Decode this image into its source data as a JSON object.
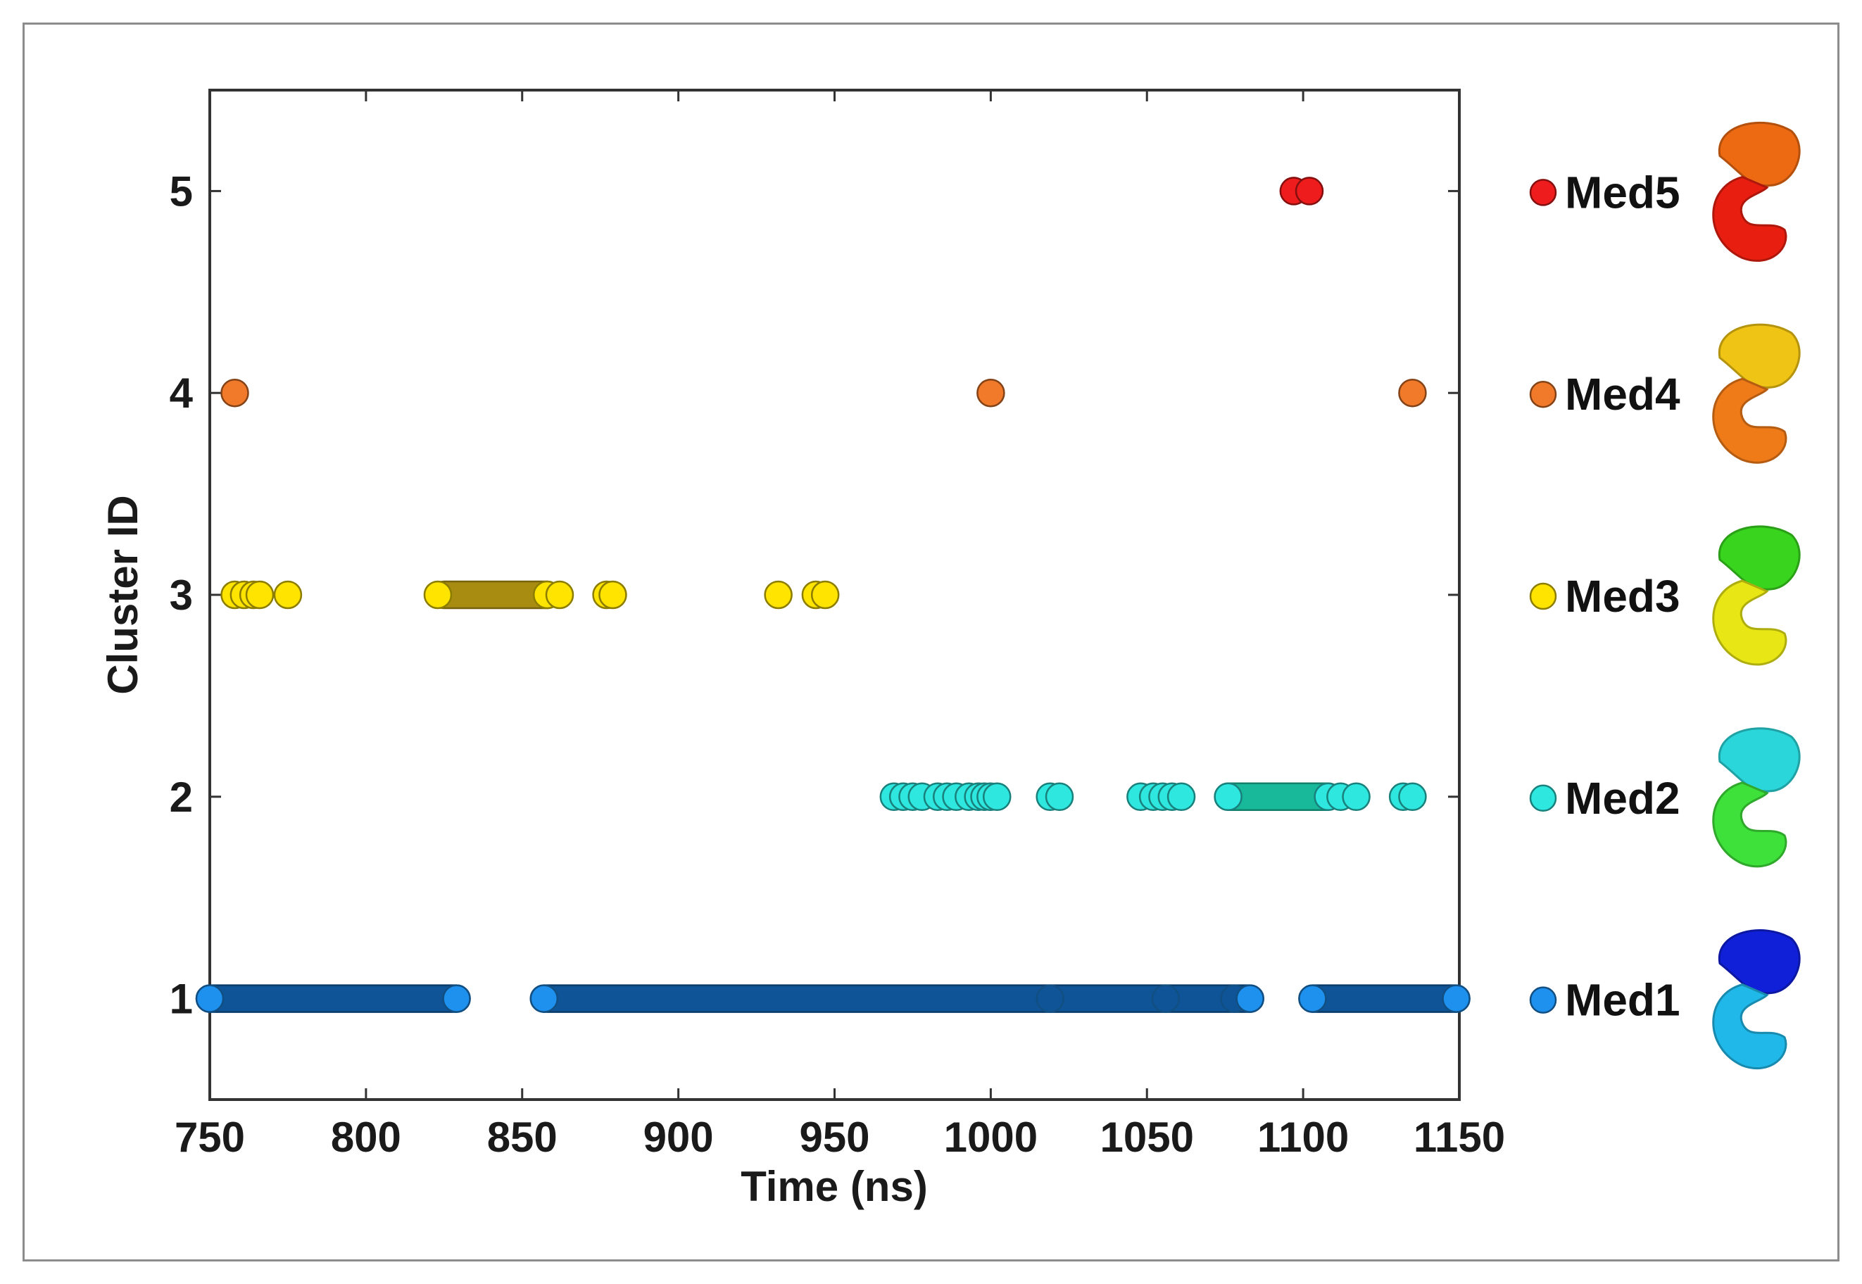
{
  "chart_data": {
    "type": "scatter",
    "title": "",
    "xlabel": "Time (ns)",
    "ylabel": "Cluster ID",
    "xlim": [
      750,
      1150
    ],
    "ylim": [
      0.5,
      5.5
    ],
    "x_ticks": [
      750,
      800,
      850,
      900,
      950,
      1000,
      1050,
      1100,
      1150
    ],
    "y_ticks": [
      1,
      2,
      3,
      4,
      5
    ],
    "grid": false,
    "legend_position": "right",
    "series": [
      {
        "name": "Med1",
        "cluster": 1,
        "color": "#1e90ee",
        "dense_color": "#0e5496",
        "segments": [
          [
            750,
            829
          ],
          [
            857,
            1083
          ],
          [
            1103,
            1149
          ]
        ],
        "points": [
          750,
          829,
          857,
          1019,
          1056,
          1078,
          1083,
          1103,
          1149
        ]
      },
      {
        "name": "Med2",
        "cluster": 2,
        "color": "#2ee8e0",
        "dense_color": "#18b89a",
        "segments": [
          [
            1076,
            1108
          ]
        ],
        "points": [
          969,
          972,
          975,
          978,
          983,
          986,
          989,
          993,
          996,
          998,
          1000,
          1002,
          1019,
          1022,
          1048,
          1052,
          1055,
          1058,
          1061,
          1076,
          1108,
          1112,
          1117,
          1132,
          1135
        ]
      },
      {
        "name": "Med3",
        "cluster": 3,
        "color": "#ffe400",
        "dense_color": "#a88c12",
        "segments": [
          [
            825,
            858
          ]
        ],
        "points": [
          758,
          761,
          764,
          766,
          775,
          823,
          858,
          862,
          877,
          879,
          932,
          944,
          947
        ]
      },
      {
        "name": "Med4",
        "cluster": 4,
        "color": "#f07a2a",
        "dense_color": "#f07a2a",
        "segments": [],
        "points": [
          758,
          1000,
          1135
        ]
      },
      {
        "name": "Med5",
        "cluster": 5,
        "color": "#ee1c1c",
        "dense_color": "#ee1c1c",
        "segments": [],
        "points": [
          1097,
          1102
        ]
      }
    ],
    "legend": [
      {
        "label": "Med5",
        "color": "#ee1c1c",
        "structure_colors": [
          "#ee6a12",
          "#e81f10"
        ]
      },
      {
        "label": "Med4",
        "color": "#f07a2a",
        "structure_colors": [
          "#f0c414",
          "#ee7a18"
        ]
      },
      {
        "label": "Med3",
        "color": "#ffe400",
        "structure_colors": [
          "#38d41e",
          "#e8e614"
        ]
      },
      {
        "label": "Med2",
        "color": "#2ee8e0",
        "structure_colors": [
          "#2ad6da",
          "#3ee03a"
        ]
      },
      {
        "label": "Med1",
        "color": "#1e90ee",
        "structure_colors": [
          "#1020d8",
          "#20b8e8"
        ]
      }
    ]
  }
}
